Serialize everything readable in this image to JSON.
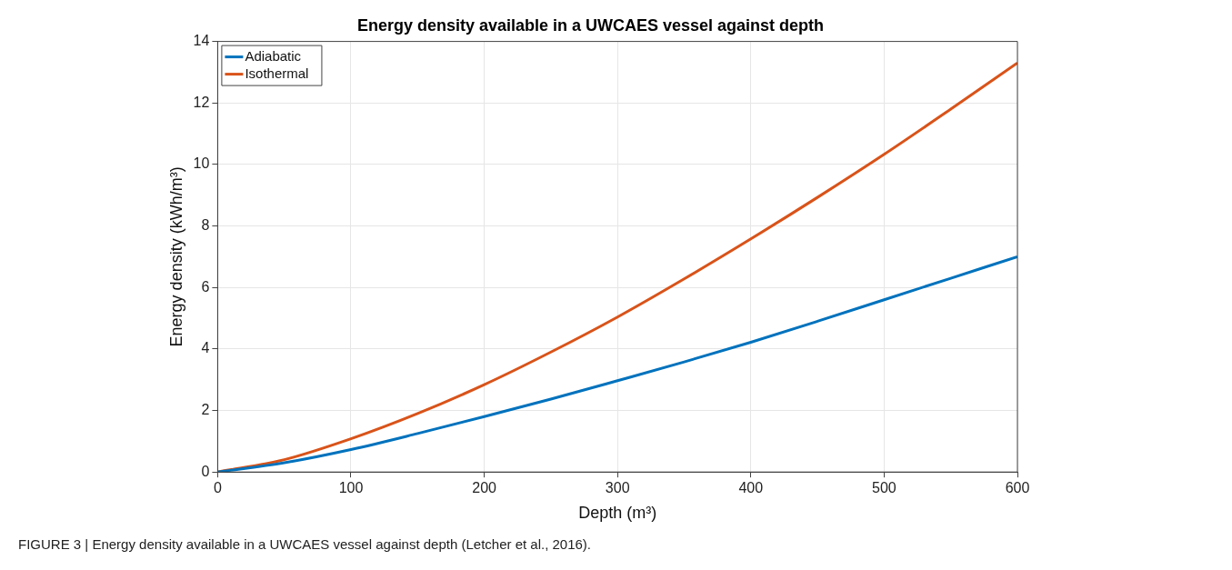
{
  "chart_data": {
    "type": "line",
    "title": "Energy density available in a UWCAES vessel against depth",
    "xlabel": "Depth (m³)",
    "ylabel": "Energy density (kWh/m³)",
    "x": [
      0,
      50,
      100,
      150,
      200,
      250,
      300,
      350,
      400,
      450,
      500,
      550,
      600
    ],
    "series": [
      {
        "name": "Adiabatic",
        "color": "#0072bd",
        "values": [
          0,
          0.3,
          0.73,
          1.25,
          1.8,
          2.37,
          2.97,
          3.58,
          4.22,
          4.9,
          5.6,
          6.3,
          7.0
        ]
      },
      {
        "name": "Isothermal",
        "color": "#d95319",
        "values": [
          0,
          0.4,
          1.08,
          1.9,
          2.84,
          3.9,
          5.04,
          6.28,
          7.58,
          8.93,
          10.33,
          11.8,
          13.3
        ]
      }
    ],
    "xlim": [
      0,
      600
    ],
    "xticks": [
      0,
      100,
      200,
      300,
      400,
      500,
      600
    ],
    "ylim": [
      0,
      14
    ],
    "yticks": [
      0,
      2,
      4,
      6,
      8,
      10,
      12,
      14
    ],
    "grid": true,
    "legend": "top left",
    "marker": "none",
    "line_style": "solid",
    "annotations": [
      "FIGURE 3 | Energy density available in a UWCAES vessel against depth (Letcher et al., 2016)."
    ]
  }
}
